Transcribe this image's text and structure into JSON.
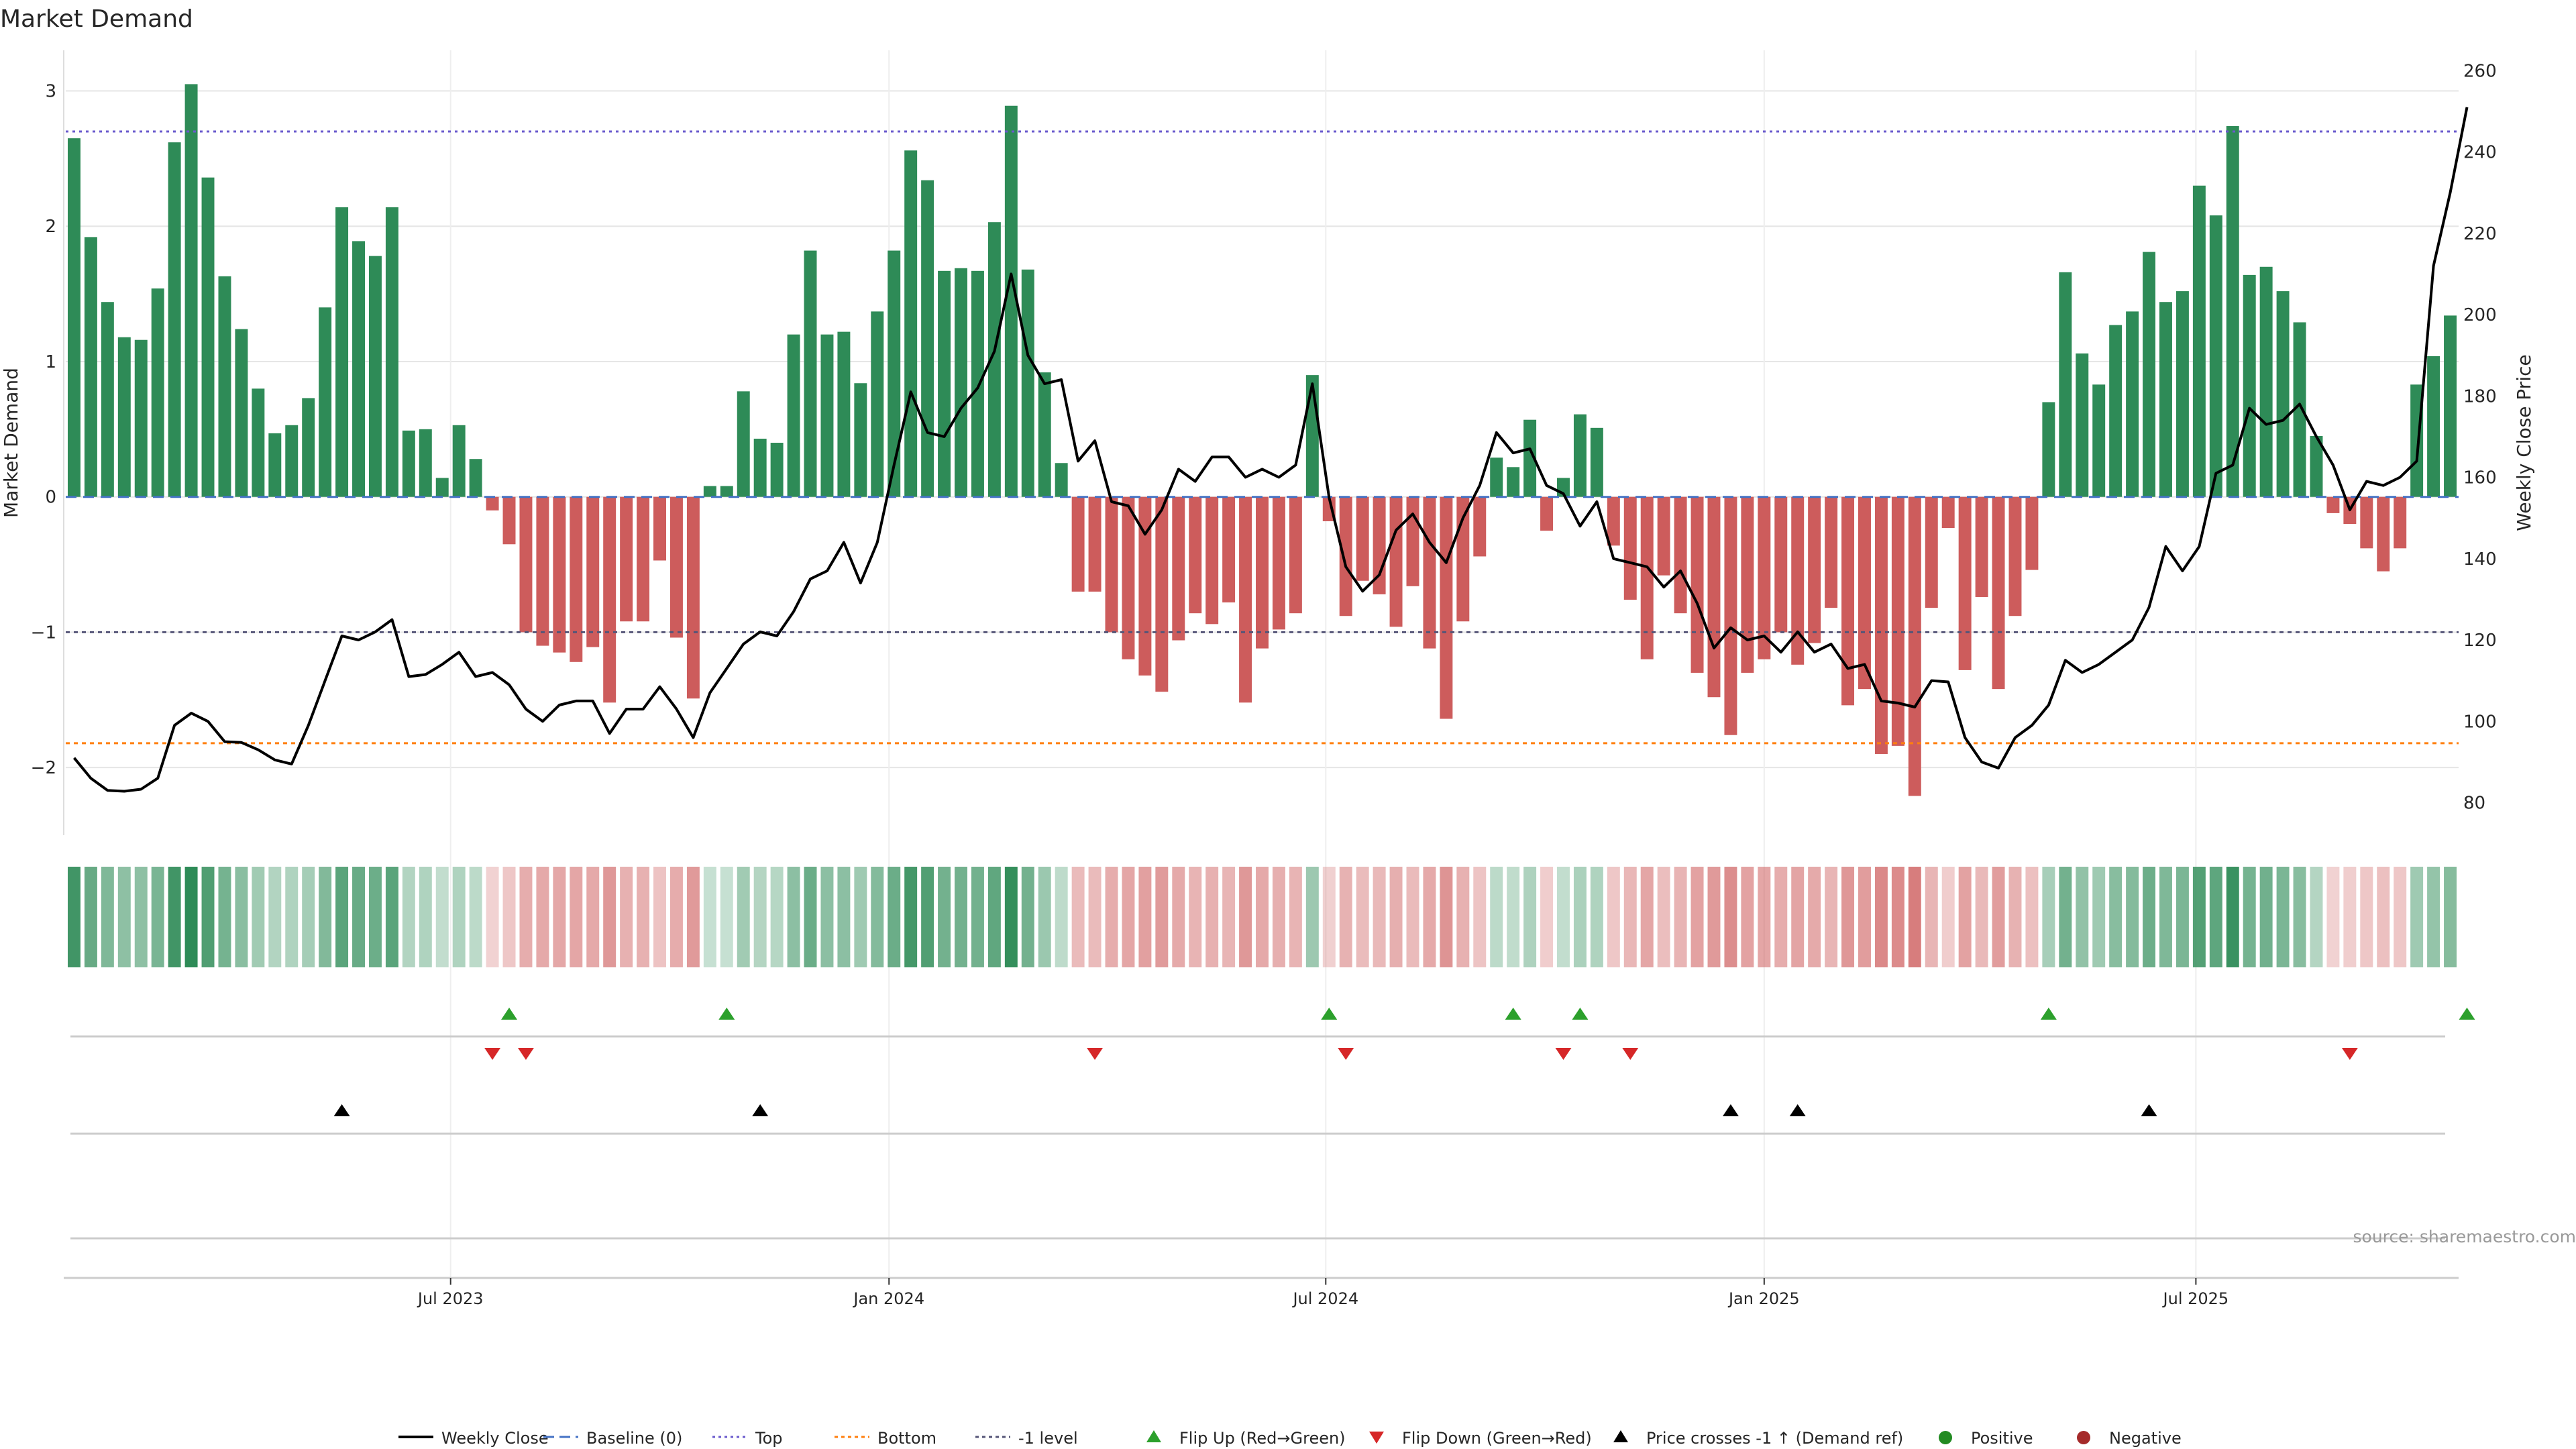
{
  "title": "Market Demand",
  "source": "source: sharemaestro.com",
  "colors": {
    "positive": "#2e8b57",
    "negative": "#cd5c5c",
    "price": "#000000",
    "top_line": "#6a5acd",
    "bottom_line": "#ff7f0e",
    "minus1_line": "#555577",
    "flip_up": "#2ca02c",
    "flip_down": "#d62728",
    "cross": "#000000",
    "grid": "#e6e6e6"
  },
  "chart_data": {
    "type": "bar+line",
    "title": "Market Demand",
    "ylabel": "Market Demand",
    "ylabel_right": "Weekly Close Price",
    "ylim": [
      -2.5,
      3.3
    ],
    "ylim_right": [
      72,
      265
    ],
    "y_ticks": [
      -2,
      -1,
      0,
      1,
      2,
      3
    ],
    "y_tick_labels": [
      "−2",
      "−1",
      "0",
      "1",
      "2",
      "3"
    ],
    "y_right_ticks": [
      80,
      100,
      120,
      140,
      160,
      180,
      200,
      220,
      240,
      260
    ],
    "y_right_tick_labels": [
      "80",
      "100",
      "120",
      "140",
      "160",
      "180",
      "200",
      "220",
      "240",
      "260"
    ],
    "x_ticks": [
      {
        "index": 22.5,
        "label": "Jul 2023"
      },
      {
        "index": 48.7,
        "label": "Jan 2024"
      },
      {
        "index": 74.8,
        "label": "Jul 2024"
      },
      {
        "index": 101.0,
        "label": "Jan 2025"
      },
      {
        "index": 126.8,
        "label": "Jul 2025"
      }
    ],
    "reference_lines": {
      "top": 2.7,
      "bottom": -1.82,
      "minus1": -1,
      "baseline": 0
    },
    "demand": [
      2.65,
      1.92,
      1.44,
      1.18,
      1.16,
      1.54,
      2.62,
      3.05,
      2.36,
      1.63,
      1.24,
      0.8,
      0.47,
      0.53,
      0.73,
      1.4,
      2.14,
      1.89,
      1.78,
      2.14,
      0.49,
      0.5,
      0.14,
      0.53,
      0.28,
      -0.1,
      -0.35,
      -1.0,
      -1.1,
      -1.15,
      -1.22,
      -1.11,
      -1.52,
      -0.92,
      -0.92,
      -0.47,
      -1.04,
      -1.49,
      0.08,
      0.08,
      0.78,
      0.43,
      0.4,
      1.2,
      1.82,
      1.2,
      1.22,
      0.84,
      1.37,
      1.82,
      2.56,
      2.34,
      1.67,
      1.69,
      1.67,
      2.03,
      2.89,
      1.68,
      0.92,
      0.25,
      -0.7,
      -0.7,
      -1.0,
      -1.2,
      -1.32,
      -1.44,
      -1.06,
      -0.86,
      -0.94,
      -0.78,
      -1.52,
      -1.12,
      -0.98,
      -0.86,
      0.9,
      -0.18,
      -0.88,
      -0.62,
      -0.72,
      -0.96,
      -0.66,
      -1.12,
      -1.64,
      -0.92,
      -0.44,
      0.29,
      0.22,
      0.57,
      -0.25,
      0.14,
      0.61,
      0.51,
      -0.36,
      -0.76,
      -1.2,
      -0.58,
      -0.86,
      -1.3,
      -1.48,
      -1.76,
      -1.3,
      -1.2,
      -1.0,
      -1.24,
      -1.08,
      -0.82,
      -1.54,
      -1.42,
      -1.9,
      -1.84,
      -2.21,
      -0.82,
      -0.23,
      -1.28,
      -0.74,
      -1.42,
      -0.88,
      -0.54,
      0.7,
      1.66,
      1.06,
      0.83,
      1.27,
      1.37,
      1.81,
      1.44,
      1.52,
      2.3,
      2.08,
      2.74,
      1.64,
      1.7,
      1.52,
      1.29,
      0.45,
      -0.12,
      -0.2,
      -0.38,
      -0.55,
      -0.38,
      0.83,
      1.04,
      1.34
    ],
    "price": [
      91,
      86,
      83,
      82.8,
      83.3,
      86,
      99,
      102,
      100,
      95,
      94.8,
      93,
      90.5,
      89.5,
      99,
      110,
      121,
      120,
      122,
      125,
      111,
      111.5,
      114,
      117,
      111,
      112,
      109,
      103,
      100,
      104,
      105,
      105,
      97,
      103,
      103,
      108.5,
      103,
      96,
      107,
      113,
      119,
      122,
      121,
      127,
      135,
      137,
      144,
      134,
      144,
      163,
      181,
      171,
      170,
      177,
      182,
      191,
      210,
      190,
      183,
      184,
      164,
      169,
      154,
      153,
      146,
      152,
      162,
      159,
      165,
      165,
      160,
      162,
      160,
      163,
      183,
      155,
      138,
      132,
      136,
      147,
      151,
      144,
      139,
      150,
      158,
      171,
      166,
      167,
      158,
      156,
      148,
      154,
      140,
      139,
      138,
      133,
      137,
      129,
      118,
      123,
      120,
      121,
      117,
      122,
      117,
      119,
      113,
      114,
      105,
      104.5,
      103.5,
      110,
      109.7,
      96,
      90,
      88.5,
      96,
      99,
      104,
      115,
      112,
      114,
      117,
      120,
      128,
      143,
      137,
      143,
      161,
      163,
      177,
      173,
      174,
      178,
      170,
      163,
      152,
      159,
      158,
      160,
      164,
      212,
      230,
      251
    ],
    "flip_up_indices": [
      26,
      39,
      75,
      86,
      90,
      118,
      143
    ],
    "flip_down_indices": [
      25,
      27,
      61,
      76,
      89,
      93,
      136
    ],
    "cross_indices": [
      16,
      41,
      99,
      103,
      124
    ],
    "legend": [
      {
        "label": "Weekly Close",
        "kind": "line-solid"
      },
      {
        "label": "Baseline (0)",
        "kind": "line-dashed"
      },
      {
        "label": "Top",
        "kind": "line-dotted-top"
      },
      {
        "label": "Bottom",
        "kind": "line-dotted-bottom"
      },
      {
        "label": "-1 level",
        "kind": "line-dotted-minus1"
      },
      {
        "label": "Flip Up (Red→Green)",
        "kind": "tri-up-green"
      },
      {
        "label": "Flip Down (Green→Red)",
        "kind": "tri-down-red"
      },
      {
        "label": "Price crosses -1 ↑ (Demand ref)",
        "kind": "tri-up-black"
      },
      {
        "label": "Positive",
        "kind": "dot-green"
      },
      {
        "label": "Negative",
        "kind": "dot-red"
      }
    ]
  }
}
